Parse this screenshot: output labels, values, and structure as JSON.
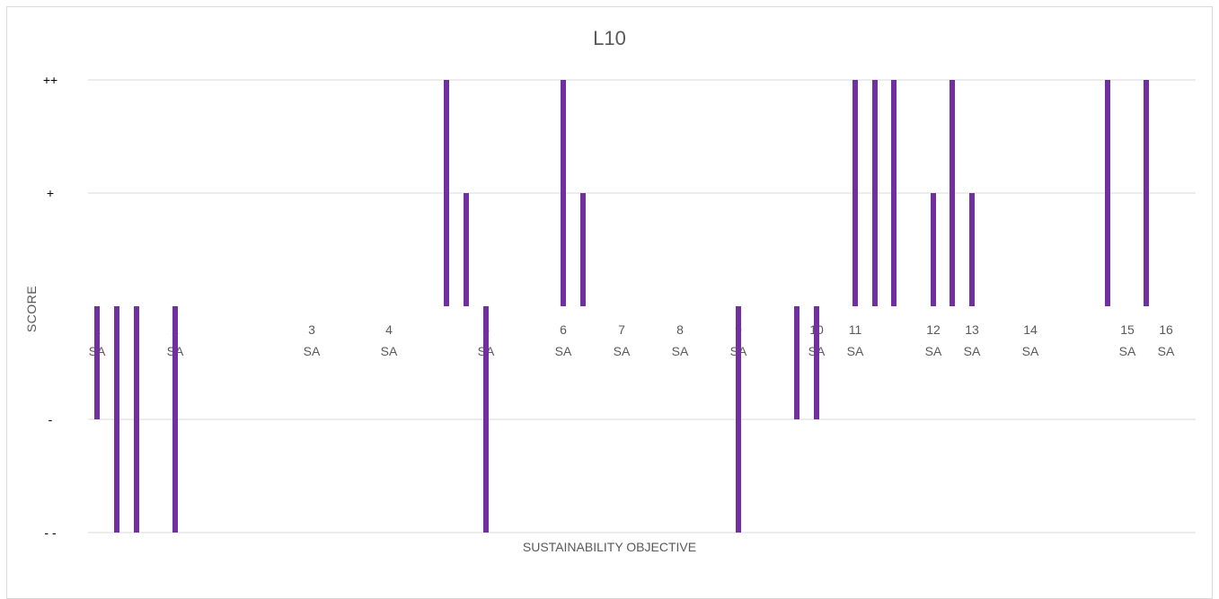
{
  "chart_data": {
    "type": "bar",
    "title": "L10",
    "xlabel": "SUSTAINABILITY OBJECTIVE",
    "ylabel": "SCORE",
    "y_ticks": [
      {
        "value": 2,
        "label": "++"
      },
      {
        "value": 1,
        "label": "+"
      },
      {
        "value": -1,
        "label": "-"
      },
      {
        "value": -2,
        "label": "- -"
      }
    ],
    "ylim": [
      -2,
      2
    ],
    "grid": true,
    "bar_color": "#7030a0",
    "categories": [
      {
        "num": "1",
        "text": "SA"
      },
      {
        "num": "",
        "text": ""
      },
      {
        "num": "",
        "text": ""
      },
      {
        "num": "2",
        "text": "SA"
      },
      {
        "num": "3",
        "text": "SA"
      },
      {
        "num": "4",
        "text": "SA"
      },
      {
        "num": "",
        "text": ""
      },
      {
        "num": "",
        "text": ""
      },
      {
        "num": "5",
        "text": "SA"
      },
      {
        "num": "6",
        "text": "SA"
      },
      {
        "num": "",
        "text": ""
      },
      {
        "num": "7",
        "text": "SA"
      },
      {
        "num": "8",
        "text": "SA"
      },
      {
        "num": "9",
        "text": "SA"
      },
      {
        "num": "",
        "text": ""
      },
      {
        "num": "10",
        "text": "SA"
      },
      {
        "num": "11",
        "text": "SA"
      },
      {
        "num": "",
        "text": ""
      },
      {
        "num": "",
        "text": ""
      },
      {
        "num": "12",
        "text": "SA"
      },
      {
        "num": "",
        "text": ""
      },
      {
        "num": "13",
        "text": "SA"
      },
      {
        "num": "14",
        "text": "SA"
      },
      {
        "num": "",
        "text": ""
      },
      {
        "num": "15",
        "text": "SA"
      },
      {
        "num": "",
        "text": ""
      },
      {
        "num": "16",
        "text": "SA"
      }
    ],
    "values": [
      -1,
      -2,
      -2,
      -2,
      0,
      0,
      2,
      1,
      -2,
      2,
      1,
      0,
      0,
      -2,
      -1,
      -1,
      2,
      2,
      2,
      1,
      2,
      1,
      0,
      2,
      0,
      2,
      0
    ]
  }
}
